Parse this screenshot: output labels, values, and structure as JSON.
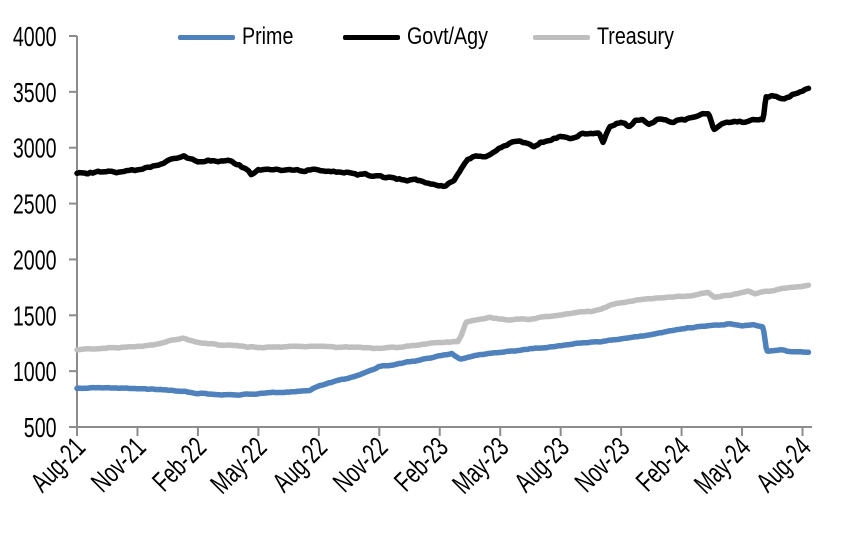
{
  "chart_data": {
    "type": "line",
    "title": "",
    "xlabel": "",
    "ylabel": "",
    "x_unit": "months since Aug-2021",
    "xlim_months": [
      0,
      36.3
    ],
    "ylim": [
      500,
      4000
    ],
    "y_ticks": [
      500,
      1000,
      1500,
      2000,
      2500,
      3000,
      3500,
      4000
    ],
    "x_tick_months": [
      0,
      3,
      6,
      9,
      12,
      15,
      18,
      21,
      24,
      27,
      30,
      33,
      36
    ],
    "x_tick_labels": [
      "Aug-21",
      "Nov-21",
      "Feb-22",
      "May-22",
      "Aug-22",
      "Nov-22",
      "Feb-23",
      "May-23",
      "Aug-23",
      "Nov-23",
      "Feb-24",
      "May-24",
      "Aug-24"
    ],
    "grid": false,
    "legend_position": "top",
    "axis_color": "#8C8C8C",
    "tick_label_color": "#000000",
    "series": [
      {
        "name": "Prime",
        "color": "#4F81BD",
        "jitter": 5,
        "points": [
          [
            0,
            845
          ],
          [
            1,
            851
          ],
          [
            2,
            848
          ],
          [
            3,
            841
          ],
          [
            4,
            834
          ],
          [
            5,
            824
          ],
          [
            6,
            801
          ],
          [
            7,
            791
          ],
          [
            8,
            788
          ],
          [
            9,
            800
          ],
          [
            10,
            810
          ],
          [
            11,
            818
          ],
          [
            11.5,
            826
          ],
          [
            12,
            872
          ],
          [
            13,
            920
          ],
          [
            14,
            965
          ],
          [
            15,
            1040
          ],
          [
            16,
            1068
          ],
          [
            17,
            1100
          ],
          [
            18,
            1138
          ],
          [
            18.6,
            1156
          ],
          [
            19,
            1106
          ],
          [
            19.5,
            1128
          ],
          [
            20,
            1150
          ],
          [
            21,
            1170
          ],
          [
            22,
            1190
          ],
          [
            23,
            1207
          ],
          [
            24,
            1230
          ],
          [
            25,
            1250
          ],
          [
            26,
            1266
          ],
          [
            27,
            1288
          ],
          [
            28,
            1312
          ],
          [
            29,
            1345
          ],
          [
            30,
            1376
          ],
          [
            31,
            1405
          ],
          [
            31.8,
            1412
          ],
          [
            32.4,
            1421
          ],
          [
            33,
            1402
          ],
          [
            33.6,
            1416
          ],
          [
            34.05,
            1392
          ],
          [
            34.22,
            1176
          ],
          [
            34.6,
            1183
          ],
          [
            35,
            1190
          ],
          [
            35.4,
            1178
          ],
          [
            36,
            1172
          ],
          [
            36.3,
            1168
          ]
        ]
      },
      {
        "name": "Govt/Agy",
        "color": "#000000",
        "jitter": 13,
        "points": [
          [
            0,
            2772
          ],
          [
            0.5,
            2768
          ],
          [
            1,
            2778
          ],
          [
            2,
            2782
          ],
          [
            3,
            2800
          ],
          [
            4,
            2845
          ],
          [
            5,
            2915
          ],
          [
            5.3,
            2932
          ],
          [
            5.7,
            2898
          ],
          [
            6,
            2878
          ],
          [
            6.5,
            2890
          ],
          [
            7,
            2868
          ],
          [
            7.5,
            2884
          ],
          [
            8,
            2852
          ],
          [
            8.5,
            2790
          ],
          [
            8.65,
            2748
          ],
          [
            9,
            2795
          ],
          [
            9.5,
            2808
          ],
          [
            10,
            2806
          ],
          [
            10.5,
            2795
          ],
          [
            11,
            2798
          ],
          [
            11.5,
            2801
          ],
          [
            12,
            2791
          ],
          [
            13,
            2780
          ],
          [
            14,
            2762
          ],
          [
            15,
            2747
          ],
          [
            15.5,
            2725
          ],
          [
            16,
            2716
          ],
          [
            16.4,
            2694
          ],
          [
            16.8,
            2712
          ],
          [
            17,
            2702
          ],
          [
            17.4,
            2675
          ],
          [
            17.8,
            2664
          ],
          [
            18.3,
            2654
          ],
          [
            18.7,
            2700
          ],
          [
            19,
            2788
          ],
          [
            19.4,
            2890
          ],
          [
            19.8,
            2918
          ],
          [
            20.3,
            2930
          ],
          [
            20.8,
            2965
          ],
          [
            21.2,
            3020
          ],
          [
            21.6,
            3052
          ],
          [
            22,
            3060
          ],
          [
            22.4,
            3040
          ],
          [
            22.7,
            3014
          ],
          [
            23,
            3052
          ],
          [
            23.5,
            3060
          ],
          [
            24,
            3094
          ],
          [
            24.5,
            3088
          ],
          [
            25,
            3118
          ],
          [
            25.5,
            3124
          ],
          [
            25.9,
            3136
          ],
          [
            26.1,
            3058
          ],
          [
            26.45,
            3185
          ],
          [
            26.8,
            3215
          ],
          [
            27,
            3228
          ],
          [
            27.4,
            3182
          ],
          [
            27.7,
            3252
          ],
          [
            28,
            3255
          ],
          [
            28.4,
            3208
          ],
          [
            28.8,
            3248
          ],
          [
            29.2,
            3252
          ],
          [
            29.6,
            3228
          ],
          [
            30,
            3252
          ],
          [
            30.5,
            3270
          ],
          [
            31,
            3298
          ],
          [
            31.35,
            3302
          ],
          [
            31.6,
            3172
          ],
          [
            32,
            3218
          ],
          [
            32.5,
            3228
          ],
          [
            33,
            3232
          ],
          [
            33.5,
            3242
          ],
          [
            34.05,
            3252
          ],
          [
            34.18,
            3450
          ],
          [
            34.5,
            3465
          ],
          [
            34.85,
            3452
          ],
          [
            35.1,
            3440
          ],
          [
            35.5,
            3470
          ],
          [
            36,
            3500
          ],
          [
            36.3,
            3525
          ]
        ]
      },
      {
        "name": "Treasury",
        "color": "#BFBFBF",
        "jitter": 6,
        "points": [
          [
            0,
            1196
          ],
          [
            1,
            1202
          ],
          [
            2,
            1210
          ],
          [
            3,
            1221
          ],
          [
            4,
            1241
          ],
          [
            5,
            1284
          ],
          [
            5.3,
            1294
          ],
          [
            6,
            1252
          ],
          [
            7,
            1236
          ],
          [
            8,
            1226
          ],
          [
            9,
            1212
          ],
          [
            10,
            1216
          ],
          [
            11,
            1221
          ],
          [
            12,
            1221
          ],
          [
            13,
            1214
          ],
          [
            14,
            1211
          ],
          [
            15,
            1202
          ],
          [
            16,
            1216
          ],
          [
            17,
            1235
          ],
          [
            18,
            1255
          ],
          [
            18.9,
            1266
          ],
          [
            19.05,
            1310
          ],
          [
            19.3,
            1438
          ],
          [
            19.7,
            1455
          ],
          [
            20.1,
            1468
          ],
          [
            20.5,
            1479
          ],
          [
            21,
            1461
          ],
          [
            21.5,
            1458
          ],
          [
            22,
            1466
          ],
          [
            22.5,
            1460
          ],
          [
            23,
            1486
          ],
          [
            23.5,
            1494
          ],
          [
            24,
            1506
          ],
          [
            24.5,
            1516
          ],
          [
            25,
            1526
          ],
          [
            25.5,
            1536
          ],
          [
            26,
            1552
          ],
          [
            26.5,
            1592
          ],
          [
            27,
            1615
          ],
          [
            27.5,
            1628
          ],
          [
            28,
            1641
          ],
          [
            28.5,
            1648
          ],
          [
            29,
            1656
          ],
          [
            29.5,
            1662
          ],
          [
            30,
            1669
          ],
          [
            30.5,
            1679
          ],
          [
            31,
            1692
          ],
          [
            31.3,
            1701
          ],
          [
            31.65,
            1657
          ],
          [
            32,
            1671
          ],
          [
            32.5,
            1684
          ],
          [
            33,
            1701
          ],
          [
            33.3,
            1714
          ],
          [
            33.65,
            1697
          ],
          [
            34,
            1711
          ],
          [
            34.5,
            1722
          ],
          [
            35,
            1741
          ],
          [
            35.5,
            1752
          ],
          [
            36,
            1763
          ],
          [
            36.3,
            1768
          ]
        ]
      }
    ]
  }
}
